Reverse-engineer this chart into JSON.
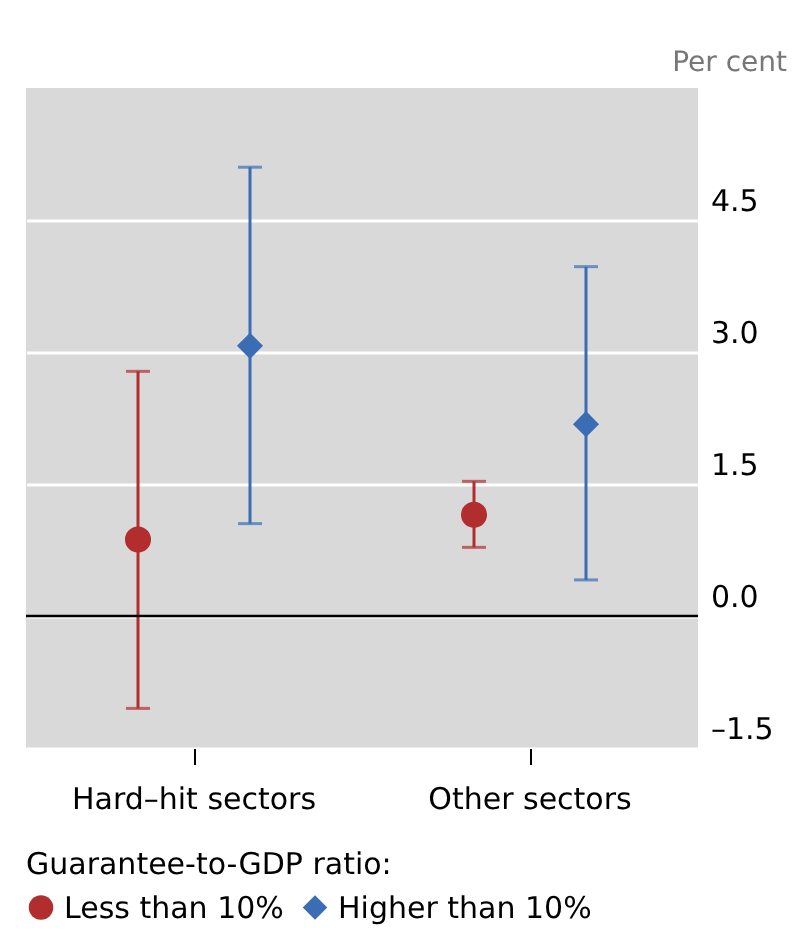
{
  "chart_data": {
    "type": "scatter",
    "ylabel": "Per cent",
    "legend_title": "Guarantee-to-GDP ratio:",
    "categories": [
      "Hard–hit sectors",
      "Other sectors"
    ],
    "series": [
      {
        "name": "Less than 10%",
        "color": "#b22d2d",
        "marker": "circle",
        "values": [
          0.87,
          1.15
        ],
        "errors": [
          [
            -1.05,
            2.78
          ],
          [
            0.78,
            1.53
          ]
        ]
      },
      {
        "name": "Higher than 10%",
        "color": "#3a6db3",
        "marker": "diamond",
        "values": [
          3.07,
          2.18
        ],
        "errors": [
          [
            1.05,
            5.1
          ],
          [
            0.41,
            3.97
          ]
        ]
      }
    ],
    "ylim": [
      -1.5,
      6
    ],
    "yticks": [
      {
        "value": -1.5,
        "label": "–1.5"
      },
      {
        "value": 0,
        "label": "0.0"
      },
      1.5,
      {
        "value": 3,
        "label": "3.0"
      },
      4.5
    ],
    "ref_lines": [
      {
        "axis": "y",
        "value": 0,
        "color": "#000000"
      }
    ],
    "grid": "y",
    "legend": "bottom"
  }
}
